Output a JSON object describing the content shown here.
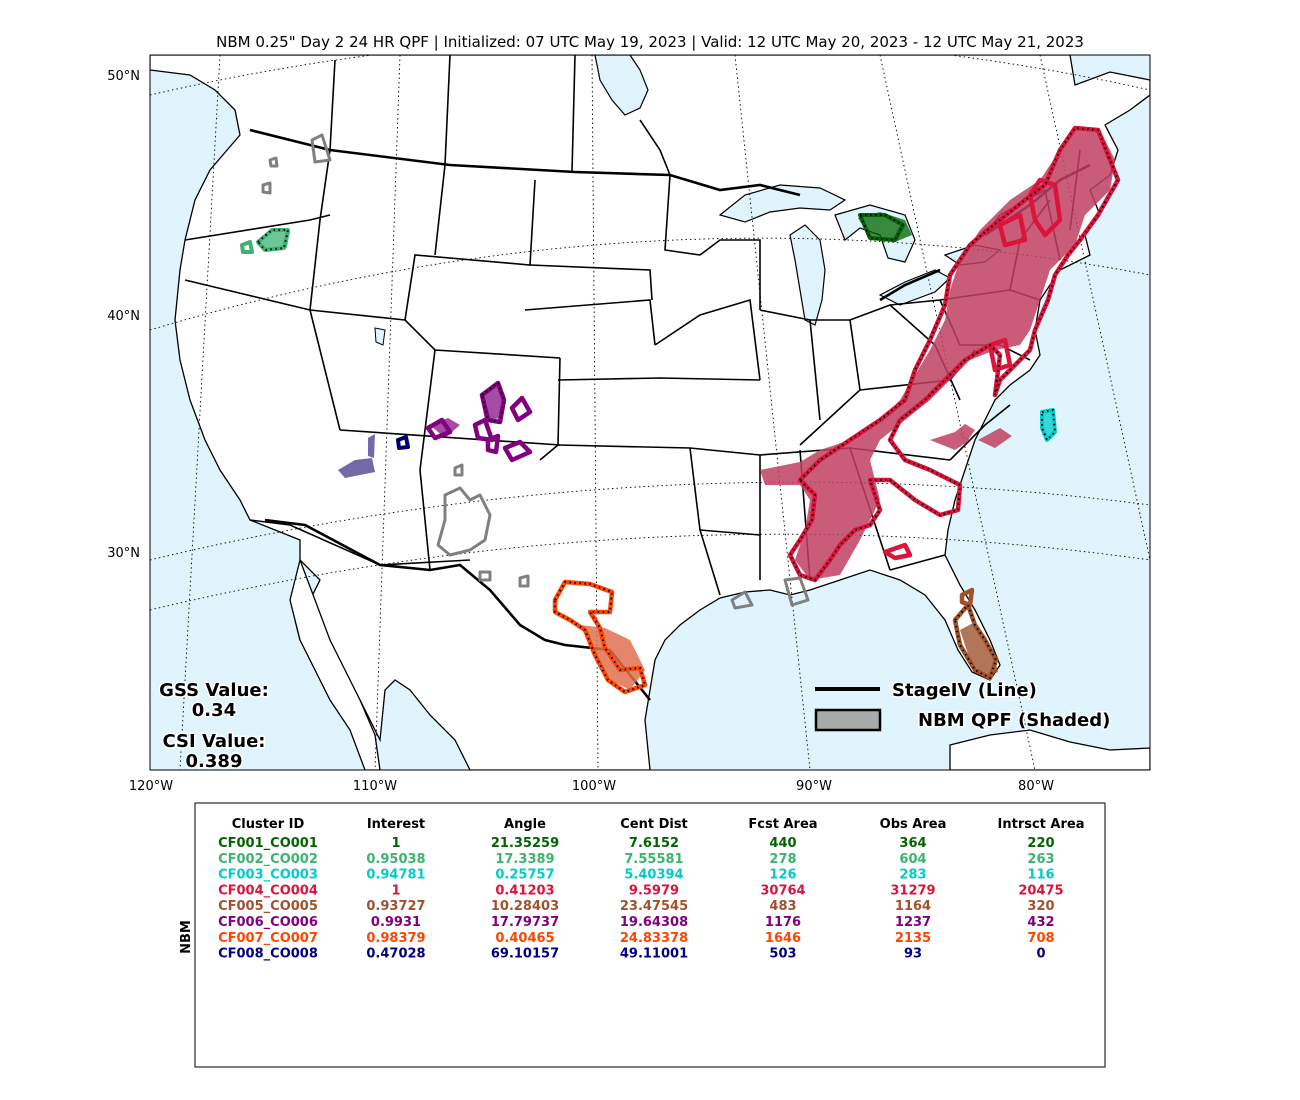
{
  "title": "NBM 0.25\" Day 2 24 HR QPF | Initialized: 07 UTC May 19, 2023 | Valid: 12 UTC May 20, 2023 - 12 UTC May 21, 2023",
  "lat_labels": [
    "50°N",
    "40°N",
    "30°N"
  ],
  "lon_labels": [
    "120°W",
    "110°W",
    "100°W",
    "90°W",
    "80°W"
  ],
  "gss": {
    "label": "GSS Value:",
    "value": "0.34"
  },
  "csi": {
    "label": "CSI Value:",
    "value": "0.389"
  },
  "legend": {
    "line_label": "StageIV (Line)",
    "shaded_label": "NBM QPF (Shaded)"
  },
  "colors": {
    "ocean": "#dff4fd",
    "land": "#ffffff",
    "obs_line": "#000000",
    "nbm_shade": "#a9a9a9"
  },
  "table": {
    "row_label": "NBM",
    "headers": [
      "Cluster ID",
      "Interest",
      "Angle",
      "Cent Dist",
      "Fcst Area",
      "Obs Area",
      "Intrsct Area"
    ],
    "rows": [
      {
        "color": "#006400",
        "cells": [
          "CF001_CO001",
          "1",
          "21.35259",
          "7.6152",
          "440",
          "364",
          "220"
        ]
      },
      {
        "color": "#3cb371",
        "cells": [
          "CF002_CO002",
          "0.95038",
          "17.3389",
          "7.55581",
          "278",
          "604",
          "263"
        ]
      },
      {
        "color": "#00cccc",
        "cells": [
          "CF003_CO003",
          "0.94781",
          "0.25757",
          "5.40394",
          "126",
          "283",
          "116"
        ]
      },
      {
        "color": "#dc143c",
        "cells": [
          "CF004_CO004",
          "1",
          "0.41203",
          "9.5979",
          "30764",
          "31279",
          "20475"
        ]
      },
      {
        "color": "#a0522d",
        "cells": [
          "CF005_CO005",
          "0.93727",
          "10.28403",
          "23.47545",
          "483",
          "1164",
          "320"
        ]
      },
      {
        "color": "#800080",
        "cells": [
          "CF006_CO006",
          "0.9931",
          "17.79737",
          "19.64308",
          "1176",
          "1237",
          "432"
        ]
      },
      {
        "color": "#ff4500",
        "cells": [
          "CF007_CO007",
          "0.98379",
          "0.40465",
          "24.83378",
          "1646",
          "2135",
          "708"
        ]
      },
      {
        "color": "#000080",
        "cells": [
          "CF008_CO008",
          "0.47028",
          "69.10157",
          "49.11001",
          "503",
          "93",
          "0"
        ]
      }
    ]
  }
}
